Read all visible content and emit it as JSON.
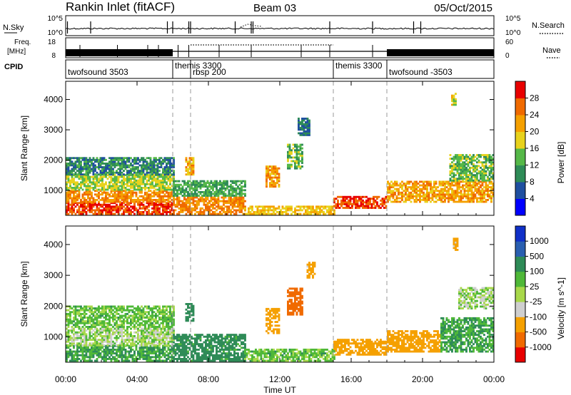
{
  "header": {
    "station": "Rankin Inlet (fitACF)",
    "beam": "Beam 03",
    "date": "05/Oct/2015"
  },
  "strip_panels": {
    "nsky": {
      "label": "N.Sky",
      "right_label": "N.Search",
      "left_ticks": [
        "10^5",
        "10^0"
      ],
      "right_ticks": [
        "10^5",
        "10^0"
      ]
    },
    "freq": {
      "label_line1": "Freq.",
      "label_line2": "[MHz]",
      "right_label": "Nave",
      "left_ticks": [
        "18",
        "8"
      ],
      "right_ticks": [
        "60",
        "0"
      ]
    },
    "cpid": {
      "label": "CPID",
      "segments": [
        {
          "name": "twofsound 3503",
          "start": 0.0,
          "end": 6.0
        },
        {
          "name": "themis 3300",
          "start": 6.0,
          "end": 7.0
        },
        {
          "name": "rbsp 200",
          "start": 7.0,
          "end": 15.0
        },
        {
          "name": "themis 3300",
          "start": 15.0,
          "end": 18.0
        },
        {
          "name": "twofsound -3503",
          "start": 18.0,
          "end": 24.0
        }
      ]
    }
  },
  "colors": {
    "power": [
      "#0000ff",
      "#1f4fa0",
      "#2e8b57",
      "#55b848",
      "#e8d21c",
      "#f5a000",
      "#f06a00",
      "#e80000"
    ],
    "velocity": [
      "#e80000",
      "#f06a00",
      "#f5a000",
      "#cfcfcf",
      "#a8d84a",
      "#4fb838",
      "#2e8b57",
      "#2a5fb0",
      "#1030c8"
    ]
  },
  "chart_data": [
    {
      "type": "heatmap",
      "panel": "power",
      "ylabel": "Slant Range [km]",
      "xlabel": "Time UT",
      "colorbar_label": "Power [dB]",
      "colorbar_ticks": [
        "28",
        "24",
        "20",
        "16",
        "12",
        "8",
        "4"
      ],
      "ylim": [
        180,
        4600
      ],
      "y_ticks": [
        1000,
        2000,
        3000,
        4000
      ],
      "xlim": [
        0,
        24
      ],
      "x_tick_labels": [
        "00:00",
        "04:00",
        "08:00",
        "12:00",
        "16:00",
        "20:00",
        "00:00"
      ],
      "x_tick_hours": [
        0,
        4,
        8,
        12,
        16,
        20,
        24
      ],
      "mode_change_hours": [
        6.0,
        7.0,
        15.0,
        18.0
      ],
      "regions": [
        {
          "t": [
            0.0,
            6.0
          ],
          "r": [
            200,
            600
          ],
          "level": 28
        },
        {
          "t": [
            0.0,
            6.0
          ],
          "r": [
            600,
            1000
          ],
          "level": 24
        },
        {
          "t": [
            0.0,
            6.0
          ],
          "r": [
            1000,
            1500
          ],
          "level": 16
        },
        {
          "t": [
            0.0,
            6.0
          ],
          "r": [
            1500,
            2100
          ],
          "level": 10
        },
        {
          "t": [
            6.0,
            10.0
          ],
          "r": [
            200,
            800
          ],
          "level": 24
        },
        {
          "t": [
            6.0,
            10.0
          ],
          "r": [
            800,
            1300
          ],
          "level": 12
        },
        {
          "t": [
            6.7,
            7.1
          ],
          "r": [
            1500,
            2100
          ],
          "level": 22
        },
        {
          "t": [
            10.0,
            15.0
          ],
          "r": [
            200,
            500
          ],
          "level": 20
        },
        {
          "t": [
            11.2,
            11.9
          ],
          "r": [
            1100,
            1800
          ],
          "level": 22
        },
        {
          "t": [
            12.4,
            13.2
          ],
          "r": [
            1700,
            2500
          ],
          "level": 14
        },
        {
          "t": [
            13.0,
            13.6
          ],
          "r": [
            2800,
            3400
          ],
          "level": 8
        },
        {
          "t": [
            15.0,
            18.0
          ],
          "r": [
            400,
            800
          ],
          "level": 28
        },
        {
          "t": [
            18.0,
            24.0
          ],
          "r": [
            600,
            1300
          ],
          "level": 22
        },
        {
          "t": [
            21.5,
            24.0
          ],
          "r": [
            1300,
            2200
          ],
          "level": 14
        },
        {
          "t": [
            21.6,
            21.9
          ],
          "r": [
            3800,
            4200
          ],
          "level": 18
        }
      ]
    },
    {
      "type": "heatmap",
      "panel": "velocity",
      "ylabel": "Slant Range [km]",
      "xlabel": "Time UT",
      "colorbar_label": "Velocity [m s^-1]",
      "colorbar_ticks": [
        "1000",
        "500",
        "100",
        "25",
        "-25",
        "-100",
        "-500",
        "-1000"
      ],
      "ylim": [
        180,
        4600
      ],
      "y_ticks": [
        1000,
        2000,
        3000,
        4000
      ],
      "xlim": [
        0,
        24
      ],
      "x_tick_labels": [
        "00:00",
        "04:00",
        "08:00",
        "12:00",
        "16:00",
        "20:00",
        "00:00"
      ],
      "x_tick_hours": [
        0,
        4,
        8,
        12,
        16,
        20,
        24
      ],
      "mode_change_hours": [
        6.0,
        7.0,
        15.0,
        18.0
      ],
      "regions": [
        {
          "t": [
            0.0,
            6.0
          ],
          "r": [
            200,
            700
          ],
          "level": 100
        },
        {
          "t": [
            0.0,
            6.0
          ],
          "r": [
            700,
            1300
          ],
          "level": 0
        },
        {
          "t": [
            0.0,
            6.0
          ],
          "r": [
            1300,
            2000
          ],
          "level": 50
        },
        {
          "t": [
            6.0,
            10.0
          ],
          "r": [
            200,
            1100
          ],
          "level": 150
        },
        {
          "t": [
            6.7,
            7.1
          ],
          "r": [
            1500,
            2100
          ],
          "level": 200
        },
        {
          "t": [
            10.0,
            15.0
          ],
          "r": [
            200,
            600
          ],
          "level": 50
        },
        {
          "t": [
            11.2,
            11.9
          ],
          "r": [
            1100,
            1900
          ],
          "level": -300
        },
        {
          "t": [
            12.4,
            13.2
          ],
          "r": [
            1700,
            2600
          ],
          "level": -600
        },
        {
          "t": [
            13.5,
            13.9
          ],
          "r": [
            2900,
            3400
          ],
          "level": -150
        },
        {
          "t": [
            15.0,
            18.0
          ],
          "r": [
            400,
            900
          ],
          "level": -300
        },
        {
          "t": [
            18.0,
            21.0
          ],
          "r": [
            500,
            1200
          ],
          "level": -200
        },
        {
          "t": [
            21.0,
            24.0
          ],
          "r": [
            500,
            1600
          ],
          "level": 100
        },
        {
          "t": [
            22.0,
            24.0
          ],
          "r": [
            1900,
            2600
          ],
          "level": 0
        },
        {
          "t": [
            21.7,
            22.0
          ],
          "r": [
            3800,
            4200
          ],
          "level": -150
        }
      ]
    }
  ]
}
